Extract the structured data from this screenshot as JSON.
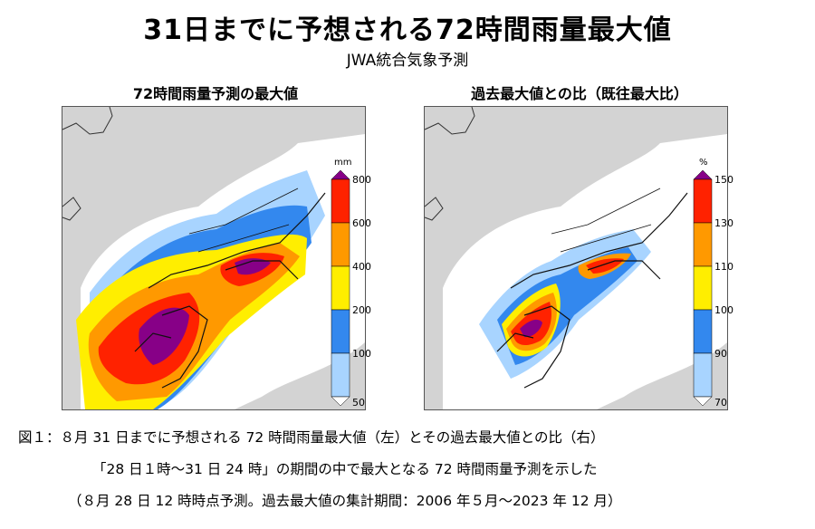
{
  "title": "31日までに予想される72時間雨量最大値",
  "subtitle": "JWA統合気象予測",
  "panels": {
    "left": {
      "title": "72時間雨量予測の最大値",
      "unit": "mm",
      "ticks": [
        "800",
        "600",
        "400",
        "200",
        "100",
        "50"
      ],
      "colors": [
        "#870087",
        "#ff2200",
        "#ff9900",
        "#ffee00",
        "#3388ee",
        "#a8d4ff",
        "#ffffff"
      ]
    },
    "right": {
      "title": "過去最大値との比（既往最大比）",
      "unit": "%",
      "ticks": [
        "150",
        "130",
        "110",
        "100",
        "90",
        "70"
      ],
      "colors": [
        "#870087",
        "#ff2200",
        "#ff9900",
        "#ffee00",
        "#3388ee",
        "#a8d4ff",
        "#ffffff"
      ]
    }
  },
  "caption": {
    "line1": "図１：８月 31 日までに予想される 72 時間雨量最大値（左）とその過去最大値との比（右）",
    "line2": "「28 日１時～31 日 24 時」の期間の中で最大となる 72 時間雨量予測を示した",
    "line3": "（８月 28 日 12 時時点予測。過去最大値の集計期間：2006 年５月～2023 年 12 月）"
  }
}
